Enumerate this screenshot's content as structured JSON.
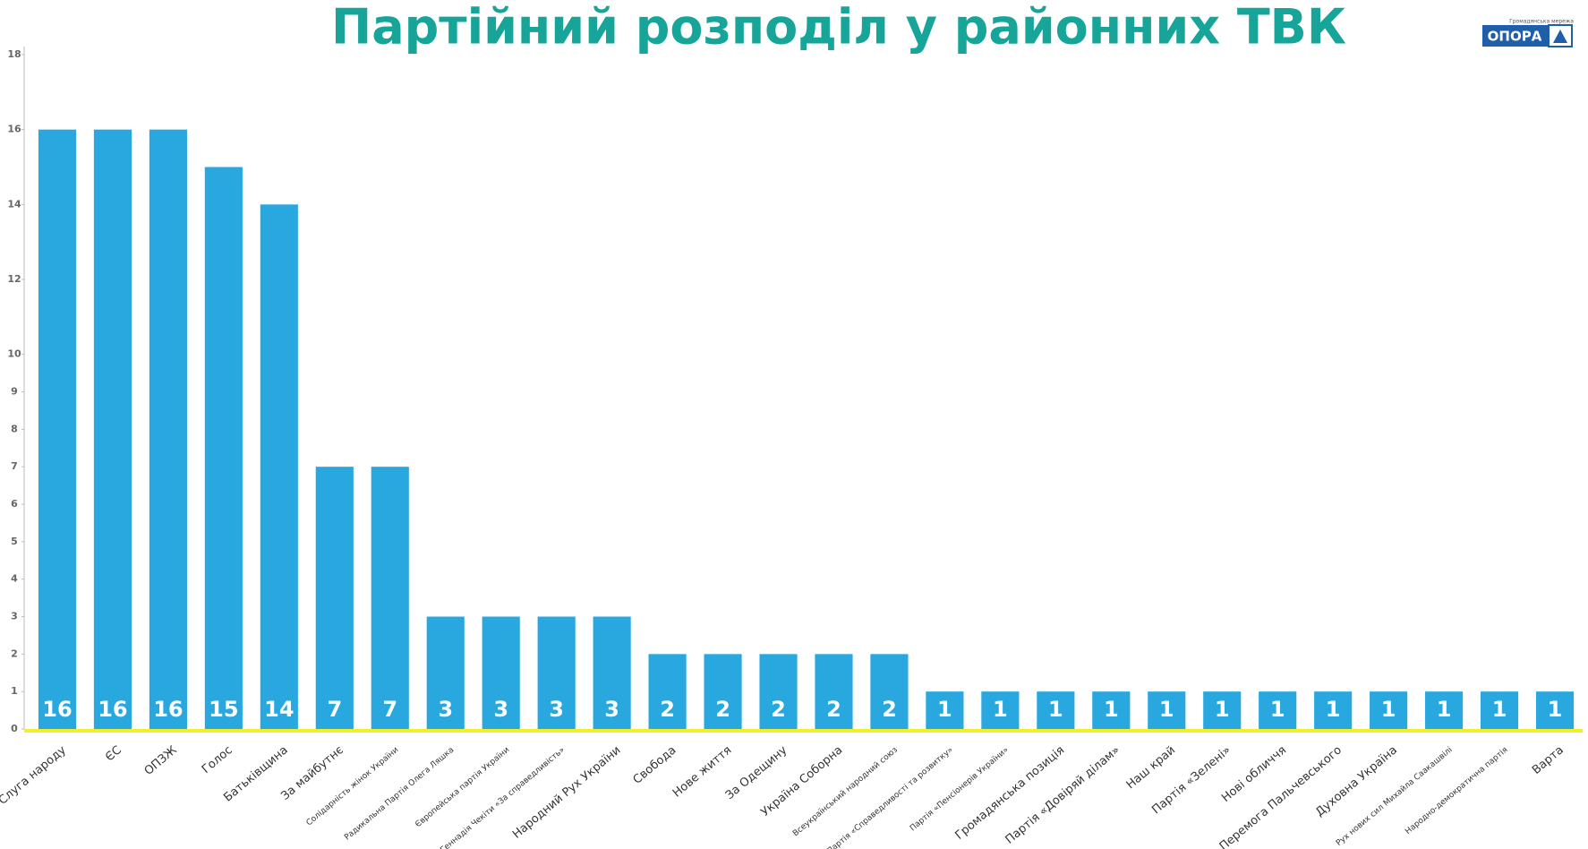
{
  "chart_data": {
    "type": "bar",
    "title": "Партійний розподіл у районних ТВК",
    "logo": {
      "name": "ОПОРА",
      "tagline": "Громадянська мережа"
    },
    "categories": [
      "Слуга народу",
      "ЄС",
      "ОПЗЖ",
      "Голос",
      "Батьківщина",
      "За майбутнє",
      "Солідарність жінок України",
      "Радикальна Партія Олега Ляшка",
      "Європейська партія України",
      "Блок Геннадія Чекіти «За справедливість»",
      "Народний Рух України",
      "Свобода",
      "Нове життя",
      "За Одещину",
      "Україна Соборна",
      "Всеукраїнський народний союз",
      "Партія «Справедливості та розвитку»",
      "Партія «Пенсіонерів України»",
      "Громадянська позиція",
      "Партія «Довіряй ділам»",
      "Наш край",
      "Партія «Зелені»",
      "Нові обличчя",
      "Перемога Пальчевського",
      "Духовна Україна",
      "Рух нових сил Михайла Саакашвілі",
      "Народно-демократична партія",
      "Варта"
    ],
    "values": [
      16,
      16,
      16,
      15,
      14,
      7,
      7,
      3,
      3,
      3,
      3,
      2,
      2,
      2,
      2,
      2,
      1,
      1,
      1,
      1,
      1,
      1,
      1,
      1,
      1,
      1,
      1,
      1
    ],
    "color": "#29a8e0",
    "ylim": [
      0,
      18
    ],
    "yticks": [
      0,
      1,
      2,
      3,
      4,
      5,
      6,
      7,
      8,
      9,
      10,
      12,
      14,
      16,
      18
    ],
    "grid": false
  }
}
